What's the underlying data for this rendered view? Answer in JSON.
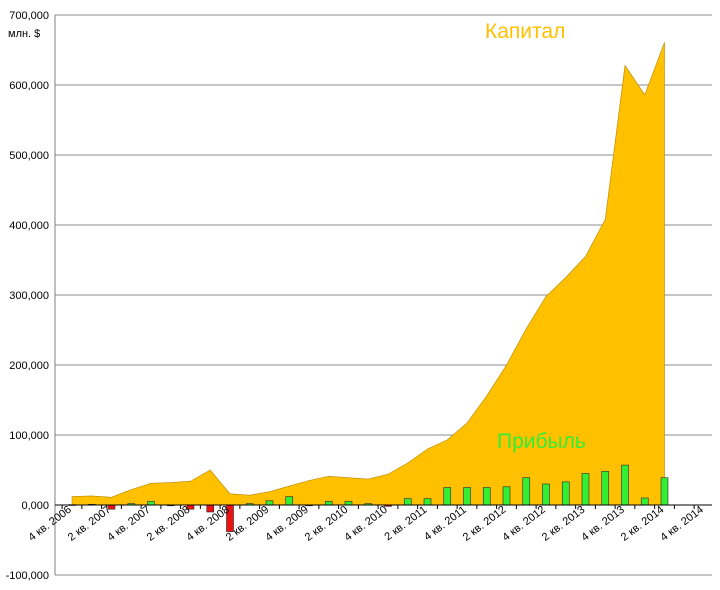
{
  "chart_data": {
    "type": "area",
    "unit_label": "млн. $",
    "ylim": [
      -100000,
      700000
    ],
    "y_ticks": [
      "700,000",
      "600,000",
      "500,000",
      "400,000",
      "300,000",
      "200,000",
      "100,000",
      "0,000",
      "-100,000"
    ],
    "y_tick_values": [
      700000,
      600000,
      500000,
      400000,
      300000,
      200000,
      100000,
      0,
      -100000
    ],
    "x_tick_labels": [
      "4 кв. 2006",
      "2 кв. 2007",
      "4 кв. 2007",
      "2 кв. 2008",
      "4 кв. 2008",
      "2 кв. 2009",
      "4 кв. 2009",
      "2 кв. 2010",
      "4 кв. 2010",
      "2 кв. 2011",
      "4 кв. 2011",
      "2 кв. 2012",
      "4 кв. 2012",
      "2 кв. 2013",
      "4 кв. 2013",
      "2 кв. 2014",
      "4 кв. 2014"
    ],
    "grid": true,
    "series": [
      {
        "name": "Капитал",
        "type": "area",
        "color": "#FFC000",
        "values": [
          12000,
          13000,
          11000,
          22000,
          31000,
          32000,
          34000,
          50000,
          16000,
          14000,
          19000,
          27000,
          35000,
          41000,
          39000,
          37000,
          44000,
          60000,
          80000,
          93000,
          117000,
          156000,
          200000,
          252000,
          298000,
          325000,
          355000,
          408000,
          628000,
          586000,
          661000
        ]
      },
      {
        "name": "Прибыль",
        "type": "bar",
        "color": "#33EE33",
        "negative_color": "#EE1111",
        "values": [
          500,
          1000,
          -6000,
          2000,
          5000,
          0,
          -6000,
          -10000,
          -38000,
          2000,
          6000,
          12000,
          0,
          5000,
          5000,
          2000,
          -2000,
          9000,
          9000,
          25000,
          25000,
          25000,
          26000,
          39000,
          30000,
          33000,
          45000,
          48000,
          57000,
          10000,
          39000
        ]
      }
    ]
  }
}
